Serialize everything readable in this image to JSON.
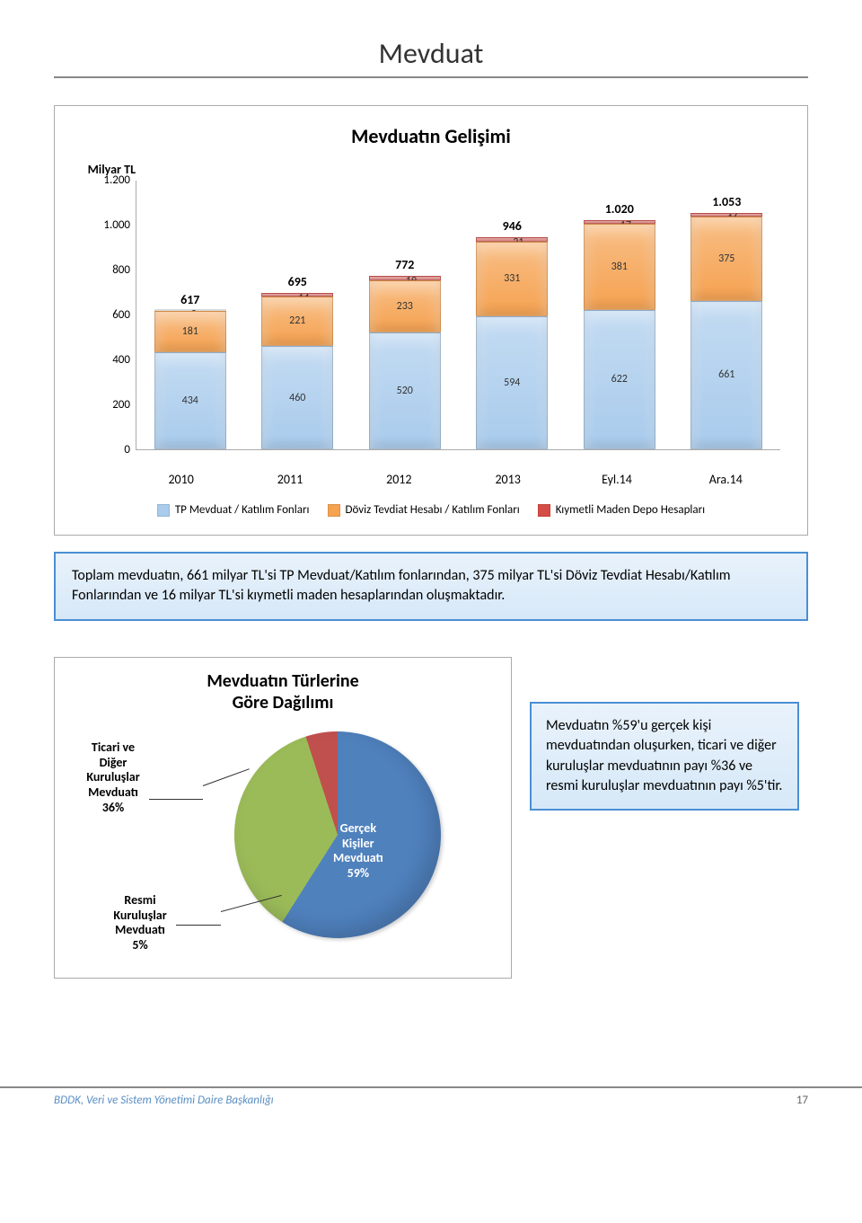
{
  "page_title": "Mevduat",
  "bar_chart": {
    "title": "Mevduatın Gelişimi",
    "y_unit": "Milyar TL",
    "ymax": 1200,
    "yticks": [
      "1.200",
      "1.000",
      "800",
      "600",
      "400",
      "200",
      "0"
    ],
    "categories": [
      "2010",
      "2011",
      "2012",
      "2013",
      "Eyl.14",
      "Ara.14"
    ],
    "colors": {
      "tp": "#a9cbec",
      "doviz": "#f5a251",
      "kmd": "#d54d46"
    },
    "series": [
      {
        "total": "617",
        "tp": 434,
        "doviz": 181,
        "kmd": 2,
        "tp_label": "434",
        "doviz_label": "181",
        "kmd_label": "2"
      },
      {
        "total": "695",
        "tp": 460,
        "doviz": 221,
        "kmd": 14,
        "tp_label": "460",
        "doviz_label": "221",
        "kmd_label": "14"
      },
      {
        "total": "772",
        "tp": 520,
        "doviz": 233,
        "kmd": 19,
        "tp_label": "520",
        "doviz_label": "233",
        "kmd_label": "19"
      },
      {
        "total": "946",
        "tp": 594,
        "doviz": 331,
        "kmd": 21,
        "tp_label": "594",
        "doviz_label": "331",
        "kmd_label": "21"
      },
      {
        "total": "1.020",
        "tp": 622,
        "doviz": 381,
        "kmd": 17,
        "tp_label": "622",
        "doviz_label": "381",
        "kmd_label": "17"
      },
      {
        "total": "1.053",
        "tp": 661,
        "doviz": 375,
        "kmd": 16,
        "tp_label": "661",
        "doviz_label": "375",
        "kmd_label": "16"
      }
    ],
    "legend": [
      {
        "label": "TP Mevduat / Katılım Fonları",
        "color": "#a9cbec"
      },
      {
        "label": "Döviz Tevdiat Hesabı / Katılım Fonları",
        "color": "#f5a251"
      },
      {
        "label": "Kıymetli Maden Depo Hesapları",
        "color": "#d54d46"
      }
    ]
  },
  "note1": "Toplam mevduatın, 661 milyar TL'si TP Mevduat/Katılım fonlarından, 375 milyar TL'si Döviz Tevdiat Hesabı/Katılım Fonlarından ve 16 milyar TL'si kıymetli maden hesaplarından oluşmaktadır.",
  "pie_chart": {
    "title_line1": "Mevduatın Türlerine",
    "title_line2": "Göre Dağılımı",
    "slices": [
      {
        "label_lines": [
          "Gerçek",
          "Kişiler",
          "Mevduatı",
          "59%"
        ],
        "value": 59,
        "color": "#4f81bd"
      },
      {
        "label_lines": [
          "Ticari ve",
          "Diğer",
          "Kuruluşlar",
          "Mevduatı",
          "36%"
        ],
        "value": 36,
        "color": "#9bbb59"
      },
      {
        "label_lines": [
          "Resmi",
          "Kuruluşlar",
          "Mevduatı",
          "5%"
        ],
        "value": 5,
        "color": "#c0504d"
      }
    ]
  },
  "note2": "Mevduatın %59'u gerçek kişi mevduatından oluşurken, ticari ve diğer kuruluşlar mevduatının payı %36 ve resmi kuruluşlar mevduatının payı %5'tir.",
  "footer_left": "BDDK, Veri ve Sistem Yönetimi Daire Başkanlığı",
  "footer_page": "17"
}
